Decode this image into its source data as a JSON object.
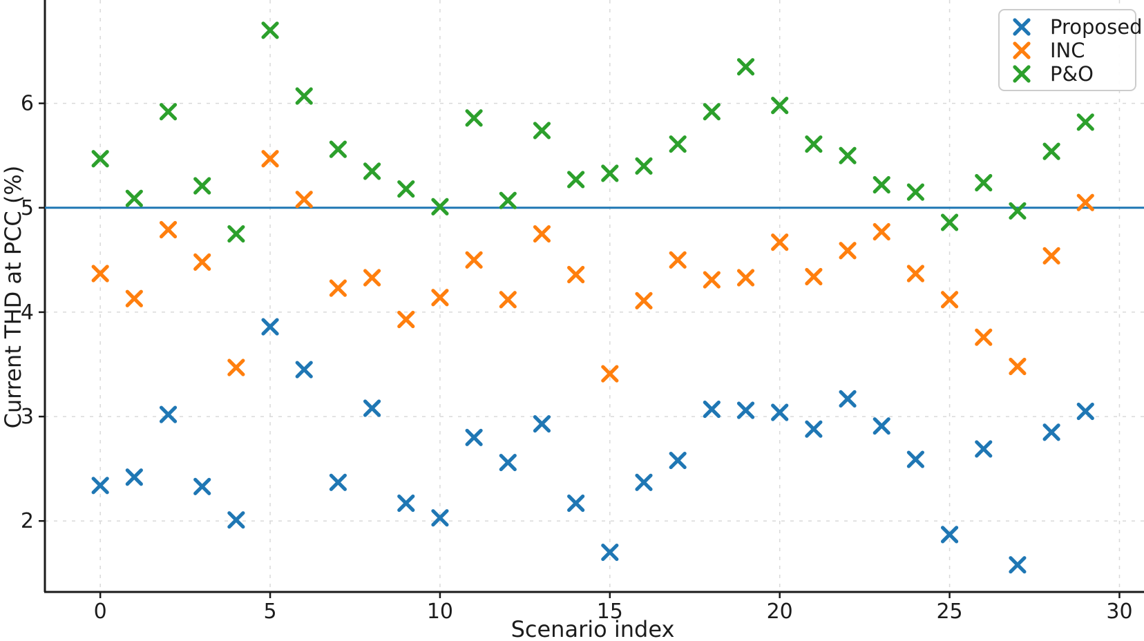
{
  "chart_data": {
    "type": "scatter",
    "title": "",
    "xlabel": "Scenario index",
    "ylabel": "Current THD at PCC (%)",
    "marker": "x",
    "grid": true,
    "legend_position": "upper right",
    "x_ticks": [
      0,
      5,
      10,
      15,
      20,
      25,
      30
    ],
    "y_ticks": [
      2,
      3,
      4,
      5,
      6
    ],
    "xlim": [
      -1.63,
      30.56
    ],
    "ylim": [
      1.32,
      6.97
    ],
    "x": [
      0,
      1,
      2,
      3,
      4,
      5,
      6,
      7,
      8,
      9,
      10,
      11,
      12,
      13,
      14,
      15,
      16,
      17,
      18,
      19,
      20,
      21,
      22,
      23,
      24,
      25,
      26,
      27,
      28,
      29
    ],
    "series": [
      {
        "name": "Proposed",
        "color": "#1f77b4",
        "values": [
          2.34,
          2.42,
          3.02,
          2.33,
          2.01,
          3.86,
          3.45,
          2.37,
          3.08,
          2.17,
          2.03,
          2.8,
          2.56,
          2.93,
          2.17,
          1.7,
          2.37,
          2.58,
          3.07,
          3.06,
          3.04,
          2.88,
          3.17,
          2.91,
          2.59,
          1.87,
          2.69,
          1.58,
          2.85,
          3.05
        ]
      },
      {
        "name": "INC",
        "color": "#ff7f0e",
        "values": [
          4.37,
          4.13,
          4.79,
          4.48,
          3.47,
          5.47,
          5.08,
          4.23,
          4.33,
          3.93,
          4.14,
          4.5,
          4.12,
          4.75,
          4.36,
          3.41,
          4.11,
          4.5,
          4.31,
          4.33,
          4.67,
          4.34,
          4.59,
          4.77,
          4.37,
          4.12,
          3.76,
          3.48,
          4.54,
          5.05
        ]
      },
      {
        "name": "P&O",
        "color": "#2ca02c",
        "values": [
          5.47,
          5.09,
          5.92,
          5.21,
          4.75,
          6.7,
          6.07,
          5.56,
          5.35,
          5.18,
          5.01,
          5.86,
          5.07,
          5.74,
          5.27,
          5.33,
          5.4,
          5.61,
          5.92,
          6.35,
          5.98,
          5.61,
          5.5,
          5.22,
          5.15,
          4.86,
          5.24,
          4.97,
          5.54,
          5.82
        ]
      }
    ],
    "reference_line": {
      "y": 5,
      "color": "#1f77b4"
    },
    "colors": {
      "spine": "#1a1a1a",
      "grid": "#d9d9d9",
      "legend_border": "#cccccc",
      "background": "#ffffff"
    }
  }
}
